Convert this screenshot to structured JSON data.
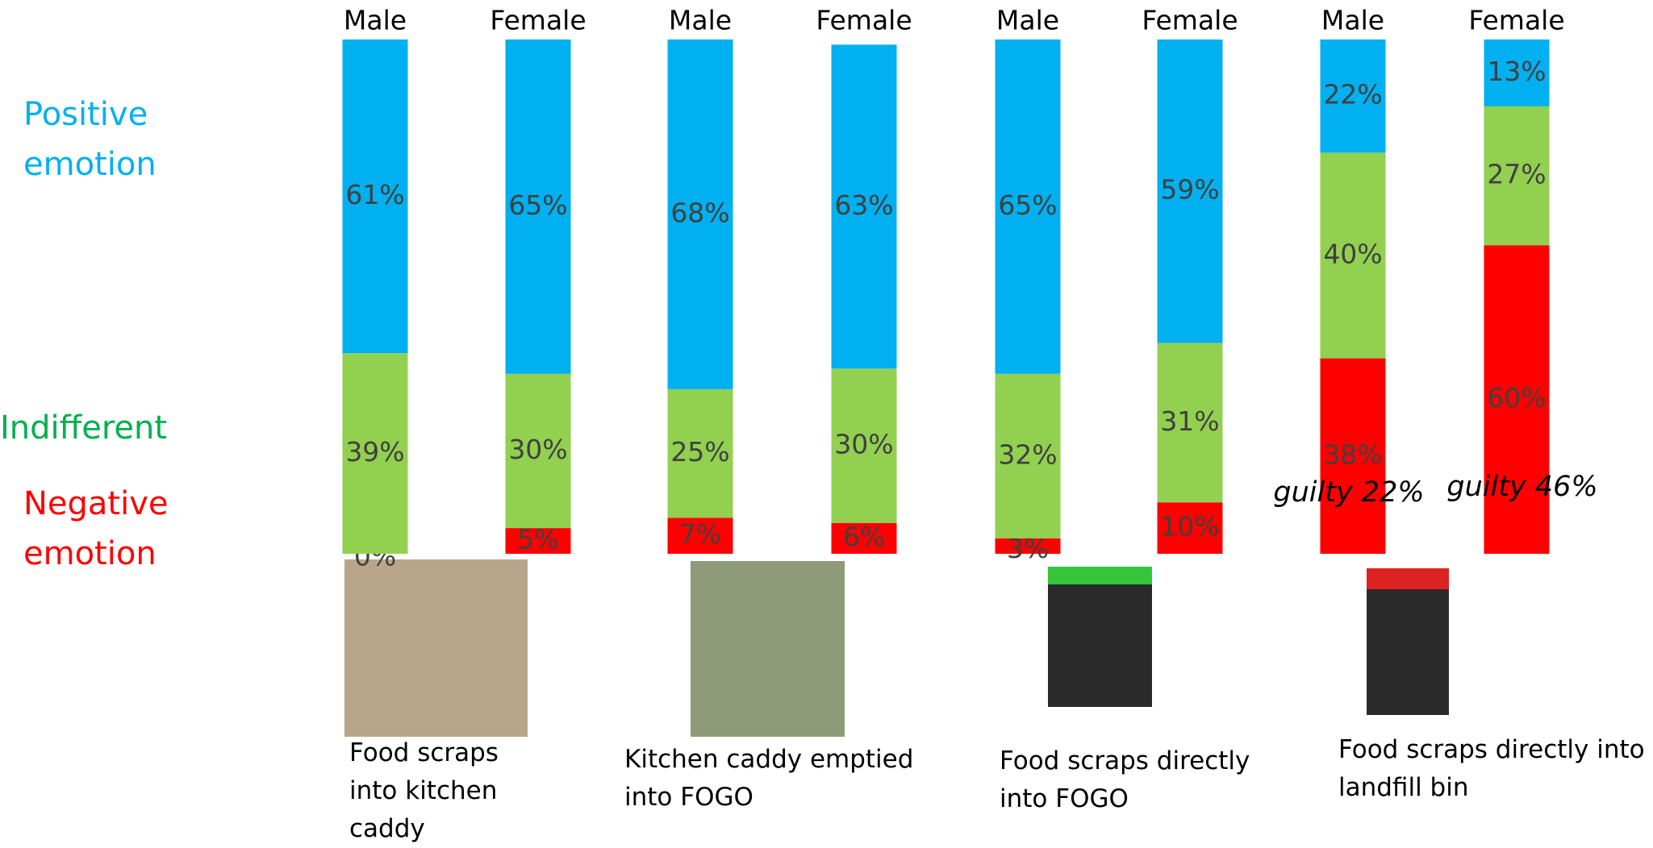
{
  "chart_data": {
    "type": "stacked_bar",
    "categories": [
      "Male",
      "Female",
      "Male",
      "Female",
      "Male",
      "Female",
      "Male",
      "Female"
    ],
    "series": [
      {
        "name": "Positive emotion",
        "color": "#00b0f0",
        "values": [
          61,
          65,
          68,
          63,
          65,
          59,
          22,
          13
        ],
        "value_labels": [
          "61%",
          "65%",
          "68%",
          "63%",
          "65%",
          "59%",
          "22%",
          "13%"
        ]
      },
      {
        "name": "Indifferent",
        "color": "#92d050",
        "values": [
          39,
          30,
          25,
          30,
          32,
          31,
          40,
          27
        ],
        "value_labels": [
          "39%",
          "30%",
          "25%",
          "30%",
          "32%",
          "31%",
          "40%",
          "27%"
        ]
      },
      {
        "name": "Negative emotion",
        "color": "#ff0000",
        "values": [
          0,
          5,
          7,
          6,
          3,
          10,
          38,
          60
        ],
        "value_labels": [
          "0%",
          "5%",
          "7%",
          "6%",
          "3%",
          "10%",
          "38%",
          "60%"
        ]
      }
    ],
    "ylim": [
      0,
      100
    ],
    "group_captions": [
      "Food scraps into kitchen caddy",
      "Kitchen caddy emptied into FOGO",
      "Food scraps directly into FOGO",
      "Food scraps directly into landfill bin"
    ],
    "annotations": [
      "guilty 22%",
      "guilty 46%"
    ]
  }
}
